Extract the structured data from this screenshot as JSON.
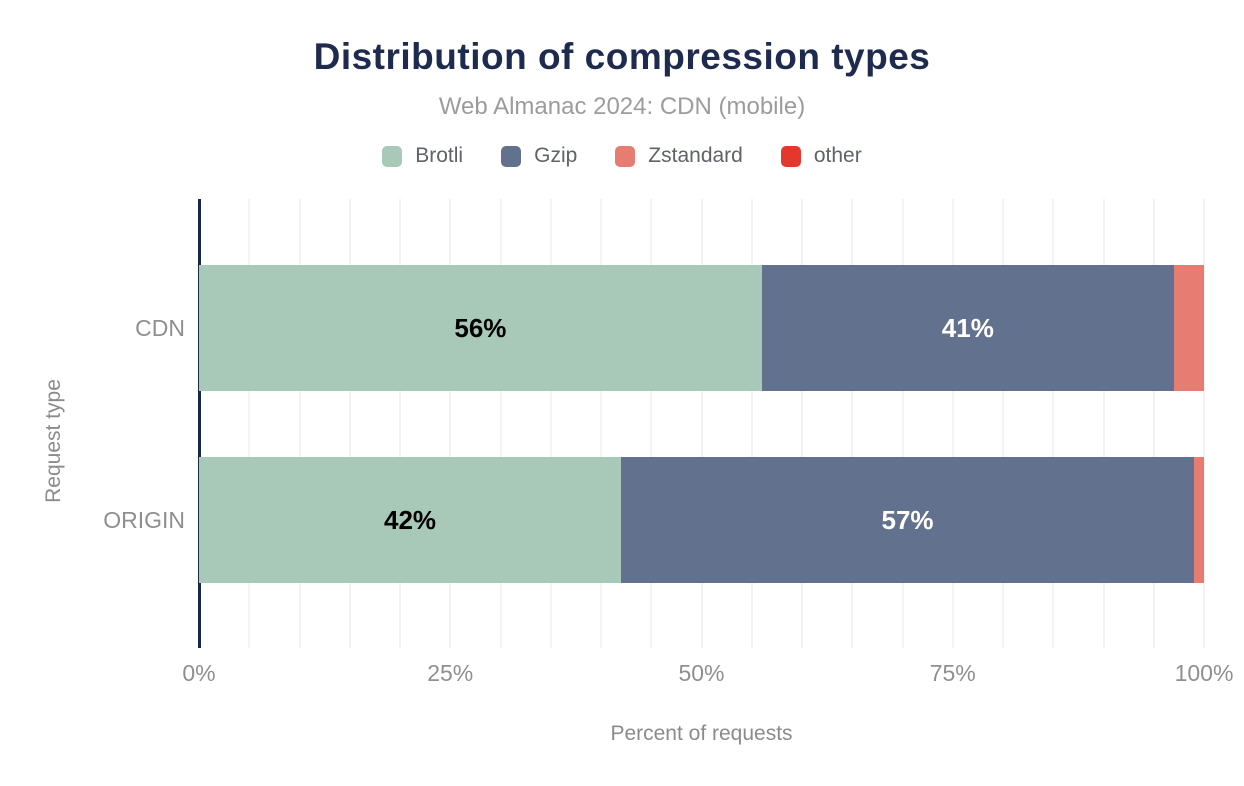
{
  "chart_data": {
    "type": "bar",
    "orientation": "horizontal",
    "stacked": true,
    "title": "Distribution of compression types",
    "subtitle": "Web Almanac 2024: CDN (mobile)",
    "xlabel": "Percent of requests",
    "ylabel": "Request type",
    "categories": [
      "CDN",
      "ORIGIN"
    ],
    "series": [
      {
        "name": "Brotli",
        "color": "#a8c9b8",
        "label_color": "#000000",
        "values": [
          56,
          42
        ],
        "labels": [
          "56%",
          "42%"
        ]
      },
      {
        "name": "Gzip",
        "color": "#62718d",
        "label_color": "#ffffff",
        "values": [
          41,
          57
        ],
        "labels": [
          "41%",
          "57%"
        ]
      },
      {
        "name": "Zstandard",
        "color": "#e67c72",
        "label_color": "#000000",
        "values": [
          3,
          1
        ],
        "labels": [
          "",
          ""
        ]
      },
      {
        "name": "other",
        "color": "#e5382c",
        "label_color": "#ffffff",
        "values": [
          0,
          0
        ],
        "labels": [
          "",
          ""
        ]
      }
    ],
    "x_ticks": [
      "0%",
      "25%",
      "50%",
      "75%",
      "100%"
    ],
    "xlim": [
      0,
      100
    ],
    "grid": {
      "interval": 5,
      "color": "#f3f3f3"
    },
    "legend_position": "top",
    "colors": {
      "title": "#1e2b4e",
      "subtitle": "#9c9c9c",
      "axis_line": "#17294a",
      "tick_label": "#8f8f8f",
      "axis_title": "#8b8b8b",
      "legend_text": "#5f6368",
      "background": "#ffffff"
    }
  }
}
